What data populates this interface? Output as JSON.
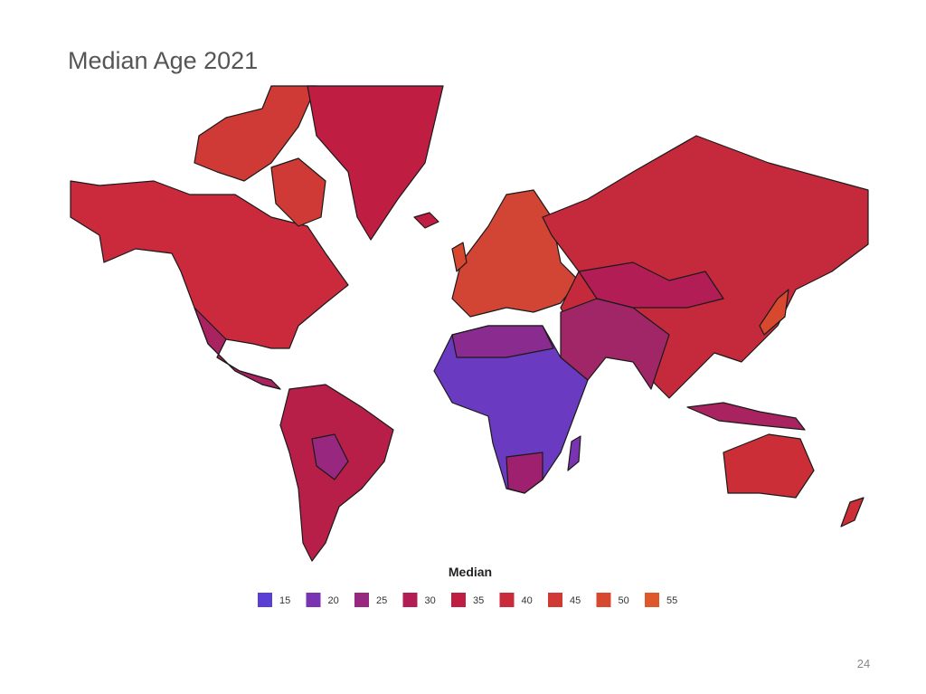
{
  "title": "Median Age 2021",
  "legend": {
    "title": "Median",
    "items": [
      {
        "label": 15,
        "color": "#5b3fd4"
      },
      {
        "label": 20,
        "color": "#7a34b2"
      },
      {
        "label": 25,
        "color": "#98287f"
      },
      {
        "label": 30,
        "color": "#b31d55"
      },
      {
        "label": 35,
        "color": "#c01d43"
      },
      {
        "label": 40,
        "color": "#c92a3c"
      },
      {
        "label": 45,
        "color": "#d13934"
      },
      {
        "label": 50,
        "color": "#d8482f"
      },
      {
        "label": 55,
        "color": "#df582b"
      }
    ]
  },
  "page_number": "24"
}
